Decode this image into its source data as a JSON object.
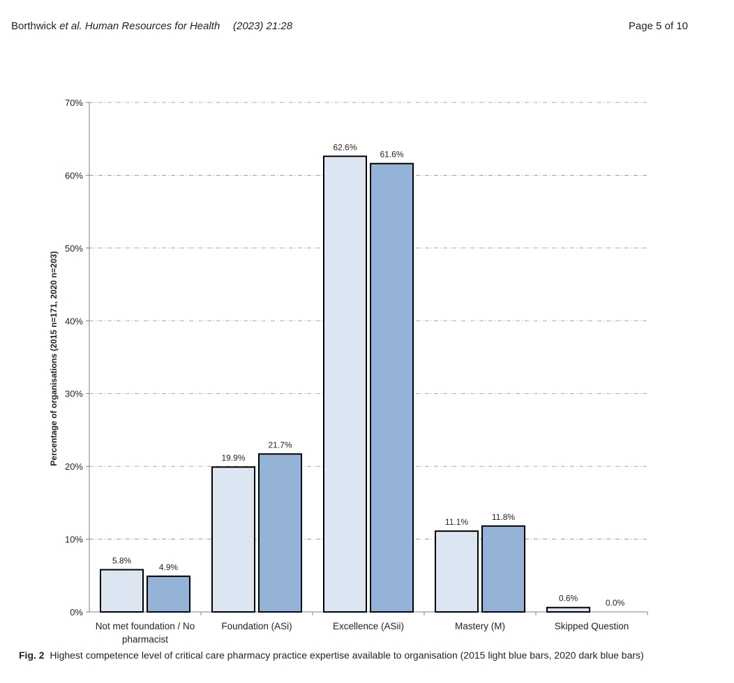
{
  "header": {
    "authors": "Borthwick ",
    "etal": "et al.",
    "journal": "Human Resources for Health",
    "year_vol": "(2023) 21:28",
    "page": "Page 5 of 10"
  },
  "caption": {
    "label": "Fig. 2",
    "text": "Highest competence level of critical care pharmacy practice expertise available to organisation (2015 light blue bars, 2020 dark blue bars)"
  },
  "colors": {
    "series_2015": "#dce6f2",
    "series_2020": "#95b3d7",
    "bar_border": "#000000",
    "grid": "#8c8c8c",
    "axis": "#7f7f7f",
    "text": "#231f20"
  },
  "chart_data": {
    "type": "bar",
    "title": "",
    "xlabel": "",
    "ylabel": "Percentage of organisations (2015 n=171, 2020 n=203)",
    "ylim": [
      0,
      70
    ],
    "yticks": [
      0,
      10,
      20,
      30,
      40,
      50,
      60,
      70
    ],
    "ytick_labels": [
      "0%",
      "10%",
      "20%",
      "30%",
      "40%",
      "50%",
      "60%",
      "70%"
    ],
    "grid": true,
    "legend": "none",
    "categories": [
      [
        "Not met foundation / No",
        "pharmacist"
      ],
      [
        "Foundation (ASi)"
      ],
      [
        "Excellence (ASii)"
      ],
      [
        "Mastery (M)"
      ],
      [
        "Skipped Question"
      ]
    ],
    "series": [
      {
        "name": "2015",
        "values": [
          5.8,
          19.9,
          62.6,
          11.1,
          0.6
        ],
        "labels": [
          "5.8%",
          "19.9%",
          "62.6%",
          "11.1%",
          "0.6%"
        ]
      },
      {
        "name": "2020",
        "values": [
          4.9,
          21.7,
          61.6,
          11.8,
          0.0
        ],
        "labels": [
          "4.9%",
          "21.7%",
          "61.6%",
          "11.8%",
          "0.0%"
        ]
      }
    ]
  }
}
